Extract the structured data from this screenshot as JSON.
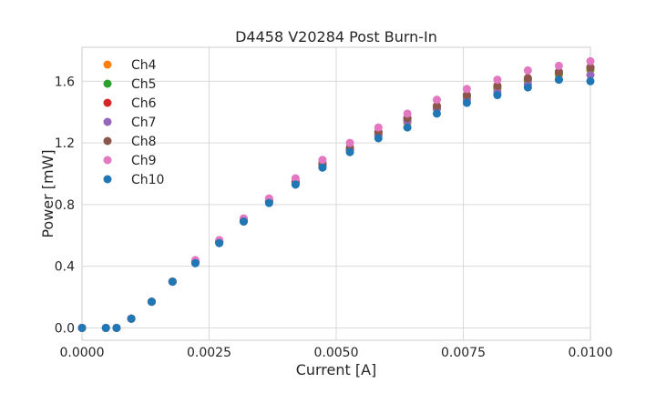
{
  "chart_data": {
    "type": "scatter",
    "title": "D4458 V20284 Post Burn-In",
    "xlabel": "Current [A]",
    "ylabel": "Power [mW]",
    "xlim": [
      0,
      0.01
    ],
    "ylim": [
      -0.08,
      1.82
    ],
    "xticks": [
      0.0,
      0.0025,
      0.005,
      0.0075,
      0.01
    ],
    "xtick_labels": [
      "0.0000",
      "0.0025",
      "0.0050",
      "0.0075",
      "0.0100"
    ],
    "yticks": [
      0.0,
      0.4,
      0.8,
      1.2,
      1.6
    ],
    "ytick_labels": [
      "0.0",
      "0.4",
      "0.8",
      "1.2",
      "1.6"
    ],
    "grid": true,
    "legend_position": "top-left",
    "x": [
      0.0,
      0.00047,
      0.00068,
      0.00097,
      0.00137,
      0.00178,
      0.00223,
      0.0027,
      0.00318,
      0.00368,
      0.0042,
      0.00473,
      0.00527,
      0.00583,
      0.0064,
      0.00698,
      0.00757,
      0.00817,
      0.00877,
      0.00938,
      0.01
    ],
    "series": [
      {
        "name": "Ch4",
        "color": "#ff7f0e",
        "values": [
          0.0,
          0.0,
          0.0,
          0.06,
          0.17,
          0.3,
          0.43,
          0.56,
          0.69,
          0.82,
          0.94,
          1.05,
          1.15,
          1.25,
          1.33,
          1.42,
          1.49,
          1.55,
          1.6,
          1.64,
          1.67
        ]
      },
      {
        "name": "Ch5",
        "color": "#2ca02c",
        "values": [
          0.0,
          0.0,
          0.0,
          0.06,
          0.17,
          0.3,
          0.43,
          0.56,
          0.69,
          0.82,
          0.94,
          1.05,
          1.16,
          1.26,
          1.35,
          1.43,
          1.5,
          1.56,
          1.61,
          1.65,
          1.68
        ]
      },
      {
        "name": "Ch6",
        "color": "#d62728",
        "values": [
          0.0,
          0.0,
          0.0,
          0.06,
          0.17,
          0.3,
          0.43,
          0.56,
          0.7,
          0.82,
          0.95,
          1.06,
          1.16,
          1.27,
          1.36,
          1.44,
          1.51,
          1.57,
          1.62,
          1.66,
          1.69
        ]
      },
      {
        "name": "Ch7",
        "color": "#9467bd",
        "values": [
          0.0,
          0.0,
          0.0,
          0.06,
          0.17,
          0.3,
          0.42,
          0.55,
          0.69,
          0.82,
          0.93,
          1.04,
          1.15,
          1.25,
          1.34,
          1.42,
          1.48,
          1.53,
          1.58,
          1.61,
          1.64
        ]
      },
      {
        "name": "Ch8",
        "color": "#8c564b",
        "values": [
          0.0,
          0.0,
          0.0,
          0.06,
          0.17,
          0.3,
          0.43,
          0.56,
          0.7,
          0.83,
          0.95,
          1.07,
          1.17,
          1.27,
          1.36,
          1.44,
          1.51,
          1.57,
          1.62,
          1.66,
          1.69
        ]
      },
      {
        "name": "Ch9",
        "color": "#e377c2",
        "values": [
          0.0,
          0.0,
          0.0,
          0.06,
          0.17,
          0.3,
          0.44,
          0.57,
          0.71,
          0.84,
          0.97,
          1.09,
          1.2,
          1.3,
          1.39,
          1.48,
          1.55,
          1.61,
          1.67,
          1.7,
          1.73
        ]
      },
      {
        "name": "Ch10",
        "color": "#1f77b4",
        "values": [
          0.0,
          0.0,
          0.0,
          0.06,
          0.17,
          0.3,
          0.42,
          0.55,
          0.69,
          0.81,
          0.93,
          1.04,
          1.14,
          1.23,
          1.3,
          1.39,
          1.46,
          1.51,
          1.56,
          1.61,
          1.6
        ]
      }
    ]
  }
}
